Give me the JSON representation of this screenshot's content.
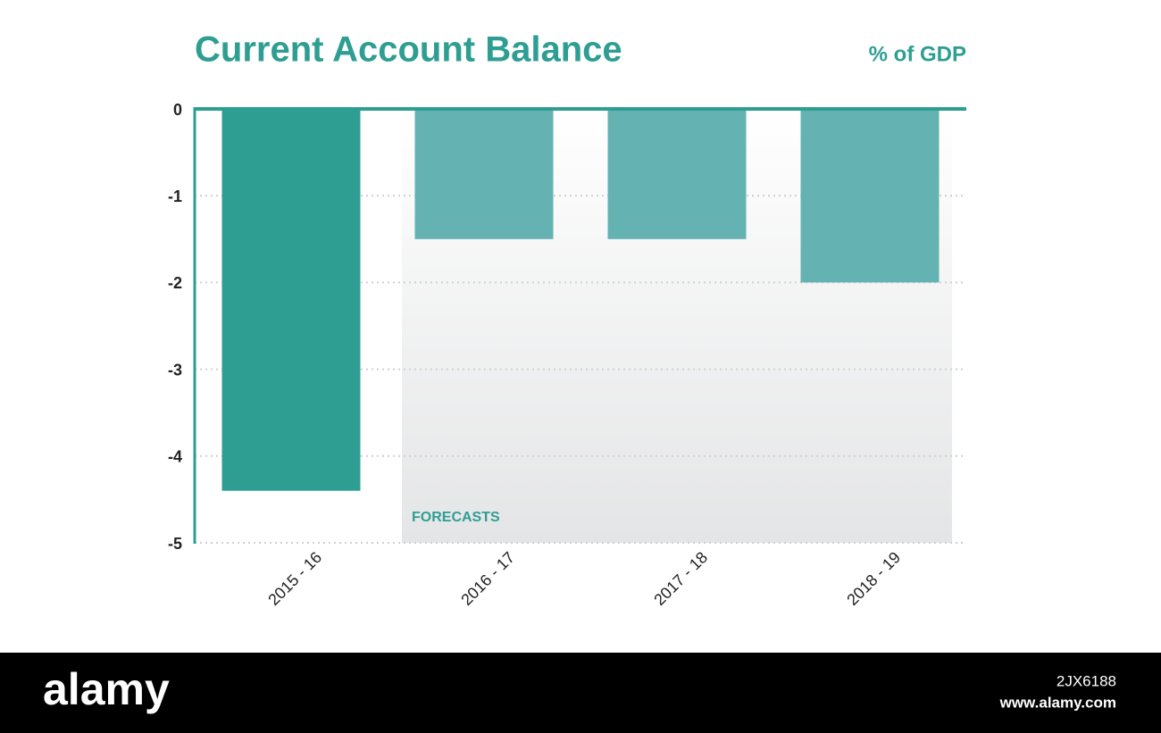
{
  "chart_data": {
    "type": "bar",
    "title": "Current Account Balance",
    "ylabel": "% of GDP",
    "categories": [
      "2015 - 16",
      "2016 - 17",
      "2017 - 18",
      "2018 - 19"
    ],
    "values": [
      -4.4,
      -1.5,
      -1.5,
      -2
    ],
    "colors": [
      "#2e9e93",
      "#64b3b2",
      "#64b3b2",
      "#64b3b2"
    ],
    "ylim": [
      -5,
      0
    ],
    "yticks": [
      0,
      -1,
      -2,
      -3,
      -4,
      -5
    ],
    "grid": true,
    "annotation": "FORECASTS"
  },
  "footer": {
    "brand": "alamy",
    "id": "2JX6188",
    "url": "www.alamy.com"
  }
}
